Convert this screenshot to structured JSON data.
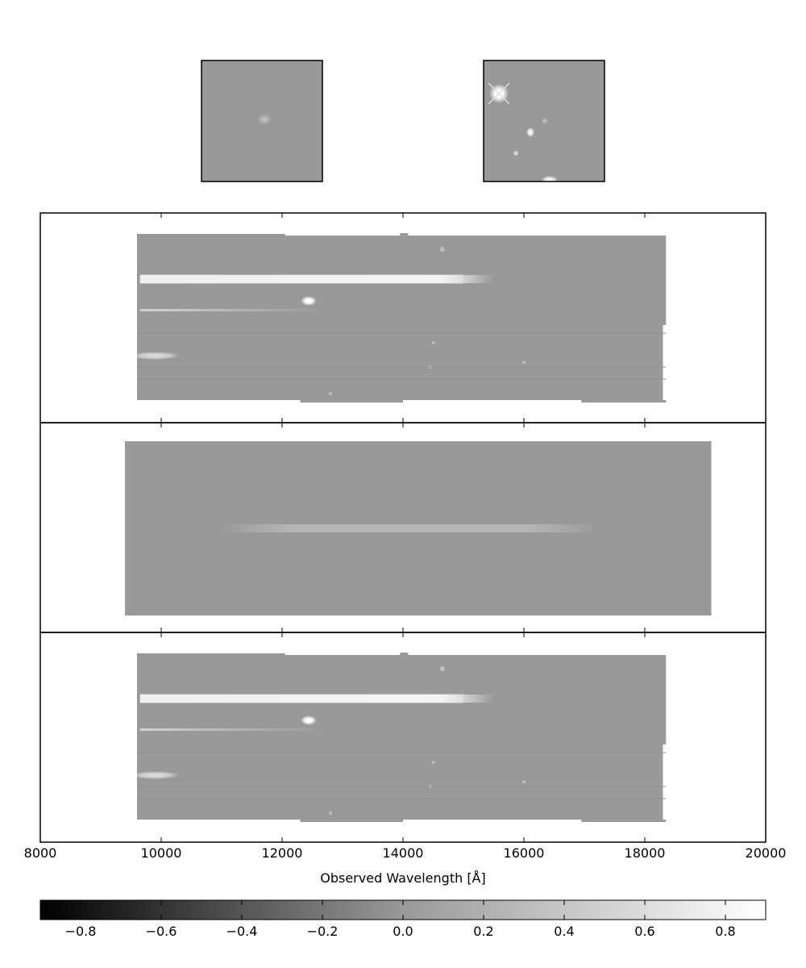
{
  "chart_data": {
    "type": "heatmap",
    "description_of_panels": [
      "thumbnail",
      "thumbnail",
      "2D spectrum",
      "2D spectrum",
      "2D spectrum"
    ],
    "colormap": "gray",
    "thumbnails": [
      {
        "name": "direct-image-thumbnail"
      },
      {
        "name": "reference-image-thumbnail"
      }
    ],
    "spectra": [
      {
        "name": "observed-2d-spectrum",
        "x_extent": [
          9600,
          18350
        ]
      },
      {
        "name": "model-2d-spectrum",
        "x_extent": [
          9400,
          19100
        ]
      },
      {
        "name": "residual-2d-spectrum",
        "x_extent": [
          9600,
          18350
        ]
      }
    ],
    "x_axis": {
      "label": "Observed Wavelength [Å]",
      "xlim": [
        8000,
        20000
      ],
      "ticks": [
        8000,
        10000,
        12000,
        14000,
        16000,
        18000,
        20000
      ],
      "tick_labels": [
        "8000",
        "10000",
        "12000",
        "14000",
        "16000",
        "18000",
        "20000"
      ]
    },
    "colorbar": {
      "range": [
        -0.9,
        0.9
      ],
      "ticks": [
        -0.8,
        -0.6,
        -0.4,
        -0.2,
        0.0,
        0.2,
        0.4,
        0.6,
        0.8
      ],
      "tick_labels": [
        "−0.8",
        "−0.6",
        "−0.4",
        "−0.2",
        "0.0",
        "0.2",
        "0.4",
        "0.6",
        "0.8"
      ],
      "colors": {
        "low": "#000000",
        "mid": "#999999",
        "high": "#ffffff"
      }
    },
    "grid": false
  }
}
